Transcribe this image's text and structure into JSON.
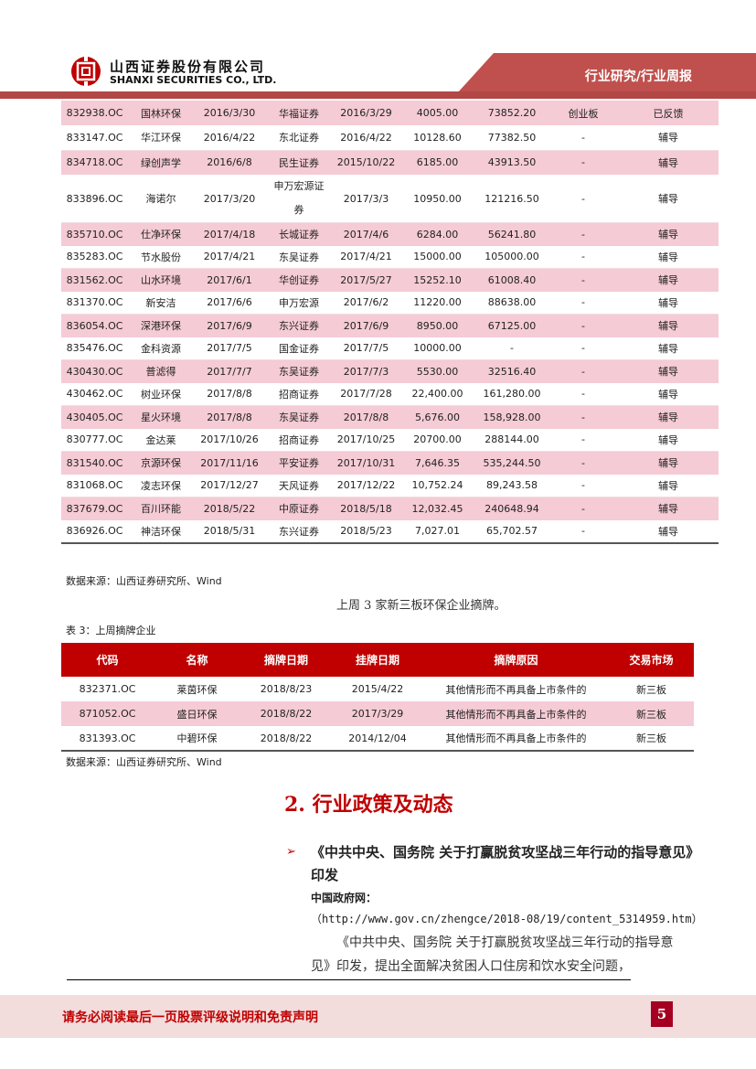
{
  "header": {
    "company_cn": "山西证券股份有限公司",
    "company_en": "SHANXI SECURITIES CO., LTD.",
    "section": "行业研究/行业周报",
    "brand_color": "#c0504d"
  },
  "table1": {
    "rows": [
      [
        "832938.OC",
        "国林环保",
        "2016/3/30",
        "华福证券",
        "2016/3/29",
        "4005.00",
        "73852.20",
        "创业板",
        "已反馈"
      ],
      [
        "833147.OC",
        "华江环保",
        "2016/4/22",
        "东北证券",
        "2016/4/22",
        "10128.60",
        "77382.50",
        "-",
        "辅导"
      ],
      [
        "834718.OC",
        "绿创声学",
        "2016/6/8",
        "民生证券",
        "2015/10/22",
        "6185.00",
        "43913.50",
        "-",
        "辅导"
      ],
      [
        "833896.OC",
        "海诺尔",
        "2017/3/20",
        "申万宏源证券",
        "2017/3/3",
        "10950.00",
        "121216.50",
        "-",
        "辅导"
      ],
      [
        "835710.OC",
        "仕净环保",
        "2017/4/18",
        "长城证券",
        "2017/4/6",
        "6284.00",
        "56241.80",
        "-",
        "辅导"
      ],
      [
        "835283.OC",
        "节水股份",
        "2017/4/21",
        "东吴证券",
        "2017/4/21",
        "15000.00",
        "105000.00",
        "-",
        "辅导"
      ],
      [
        "831562.OC",
        "山水环境",
        "2017/6/1",
        "华创证券",
        "2017/5/27",
        "15252.10",
        "61008.40",
        "-",
        "辅导"
      ],
      [
        "831370.OC",
        "新安洁",
        "2017/6/6",
        "申万宏源",
        "2017/6/2",
        "11220.00",
        "88638.00",
        "-",
        "辅导"
      ],
      [
        "836054.OC",
        "深港环保",
        "2017/6/9",
        "东兴证券",
        "2017/6/9",
        "8950.00",
        "67125.00",
        "-",
        "辅导"
      ],
      [
        "835476.OC",
        "金科资源",
        "2017/7/5",
        "国金证券",
        "2017/7/5",
        "10000.00",
        "-",
        "-",
        "辅导"
      ],
      [
        "430430.OC",
        "普滤得",
        "2017/7/7",
        "东吴证券",
        "2017/7/3",
        "5530.00",
        "32516.40",
        "-",
        "辅导"
      ],
      [
        "430462.OC",
        "树业环保",
        "2017/8/8",
        "招商证券",
        "2017/7/28",
        "22,400.00",
        "161,280.00",
        "-",
        "辅导"
      ],
      [
        "430405.OC",
        "星火环境",
        "2017/8/8",
        "东吴证券",
        "2017/8/8",
        "5,676.00",
        "158,928.00",
        "-",
        "辅导"
      ],
      [
        "830777.OC",
        "金达莱",
        "2017/10/26",
        "招商证券",
        "2017/10/25",
        "20700.00",
        "288144.00",
        "-",
        "辅导"
      ],
      [
        "831540.OC",
        "京源环保",
        "2017/11/16",
        "平安证券",
        "2017/10/31",
        "7,646.35",
        "535,244.50",
        "-",
        "辅导"
      ],
      [
        "831068.OC",
        "凌志环保",
        "2017/12/27",
        "天风证券",
        "2017/12/22",
        "10,752.24",
        "89,243.58",
        "-",
        "辅导"
      ],
      [
        "837679.OC",
        "百川环能",
        "2018/5/22",
        "中原证券",
        "2018/5/18",
        "12,032.45",
        "240648.94",
        "-",
        "辅导"
      ],
      [
        "836926.OC",
        "神洁环保",
        "2018/5/31",
        "东兴证券",
        "2018/5/23",
        "7,027.01",
        "65,702.57",
        "-",
        "辅导"
      ]
    ],
    "source": "数据来源：山西证券研究所、Wind"
  },
  "summary": "上周 3 家新三板环保企业摘牌。",
  "table2": {
    "caption": "表 3：上周摘牌企业",
    "headers": [
      "代码",
      "名称",
      "摘牌日期",
      "挂牌日期",
      "摘牌原因",
      "交易市场"
    ],
    "rows": [
      [
        "832371.OC",
        "莱茵环保",
        "2018/8/23",
        "2015/4/22",
        "其他情形而不再具备上市条件的",
        "新三板"
      ],
      [
        "871052.OC",
        "盛日环保",
        "2018/8/22",
        "2017/3/29",
        "其他情形而不再具备上市条件的",
        "新三板"
      ],
      [
        "831393.OC",
        "中碧环保",
        "2018/8/22",
        "2014/12/04",
        "其他情形而不再具备上市条件的",
        "新三板"
      ]
    ],
    "source": "数据来源：山西证券研究所、Wind",
    "header_color": "#c00000"
  },
  "section2": {
    "heading": "2. 行业政策及动态",
    "bullet_icon": "arrow-bullet-icon",
    "item_title": "《中共中央、国务院 关于打赢脱贫攻坚战三年行动的指导意见》印发",
    "source_label": "中国政府网：",
    "url": "（http://www.gov.cn/zhengce/2018-08/19/content_5314959.htm）",
    "paragraph": "《中共中央、国务院 关于打赢脱贫攻坚战三年行动的指导意见》印发，提出全面解决贫困人口住房和饮水安全问题，"
  },
  "footer": {
    "disclaimer": "请务必阅读最后一页股票评级说明和免责声明",
    "page_number": "5"
  }
}
